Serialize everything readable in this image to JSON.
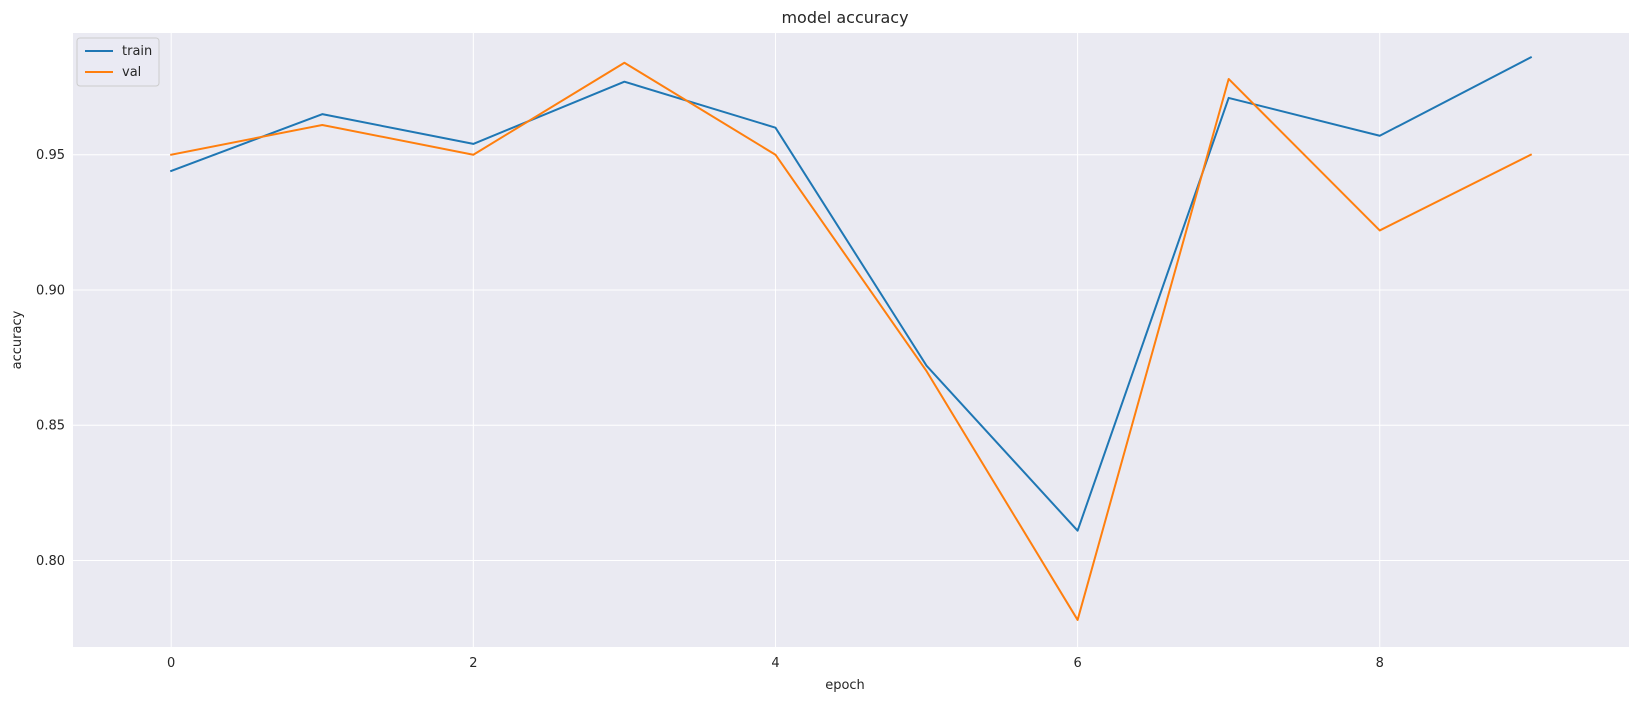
{
  "chart_data": {
    "type": "line",
    "title": "model accuracy",
    "xlabel": "epoch",
    "ylabel": "accuracy",
    "x": [
      0,
      1,
      2,
      3,
      4,
      5,
      6,
      7,
      8,
      9
    ],
    "xlim": [
      -0.65,
      9.65
    ],
    "ylim": [
      0.768,
      0.995
    ],
    "xticks": [
      0,
      2,
      4,
      6,
      8
    ],
    "yticks": [
      0.8,
      0.85,
      0.9,
      0.95
    ],
    "ytick_labels": [
      "0.80",
      "0.85",
      "0.90",
      "0.95"
    ],
    "grid": true,
    "legend_position": "upper-left",
    "series": [
      {
        "name": "train",
        "color": "#1f77b4",
        "values": [
          0.944,
          0.965,
          0.954,
          0.977,
          0.96,
          0.872,
          0.811,
          0.971,
          0.957,
          0.986
        ]
      },
      {
        "name": "val",
        "color": "#ff7f0e",
        "values": [
          0.95,
          0.961,
          0.95,
          0.984,
          0.95,
          0.87,
          0.778,
          0.978,
          0.922,
          0.95
        ]
      }
    ]
  }
}
